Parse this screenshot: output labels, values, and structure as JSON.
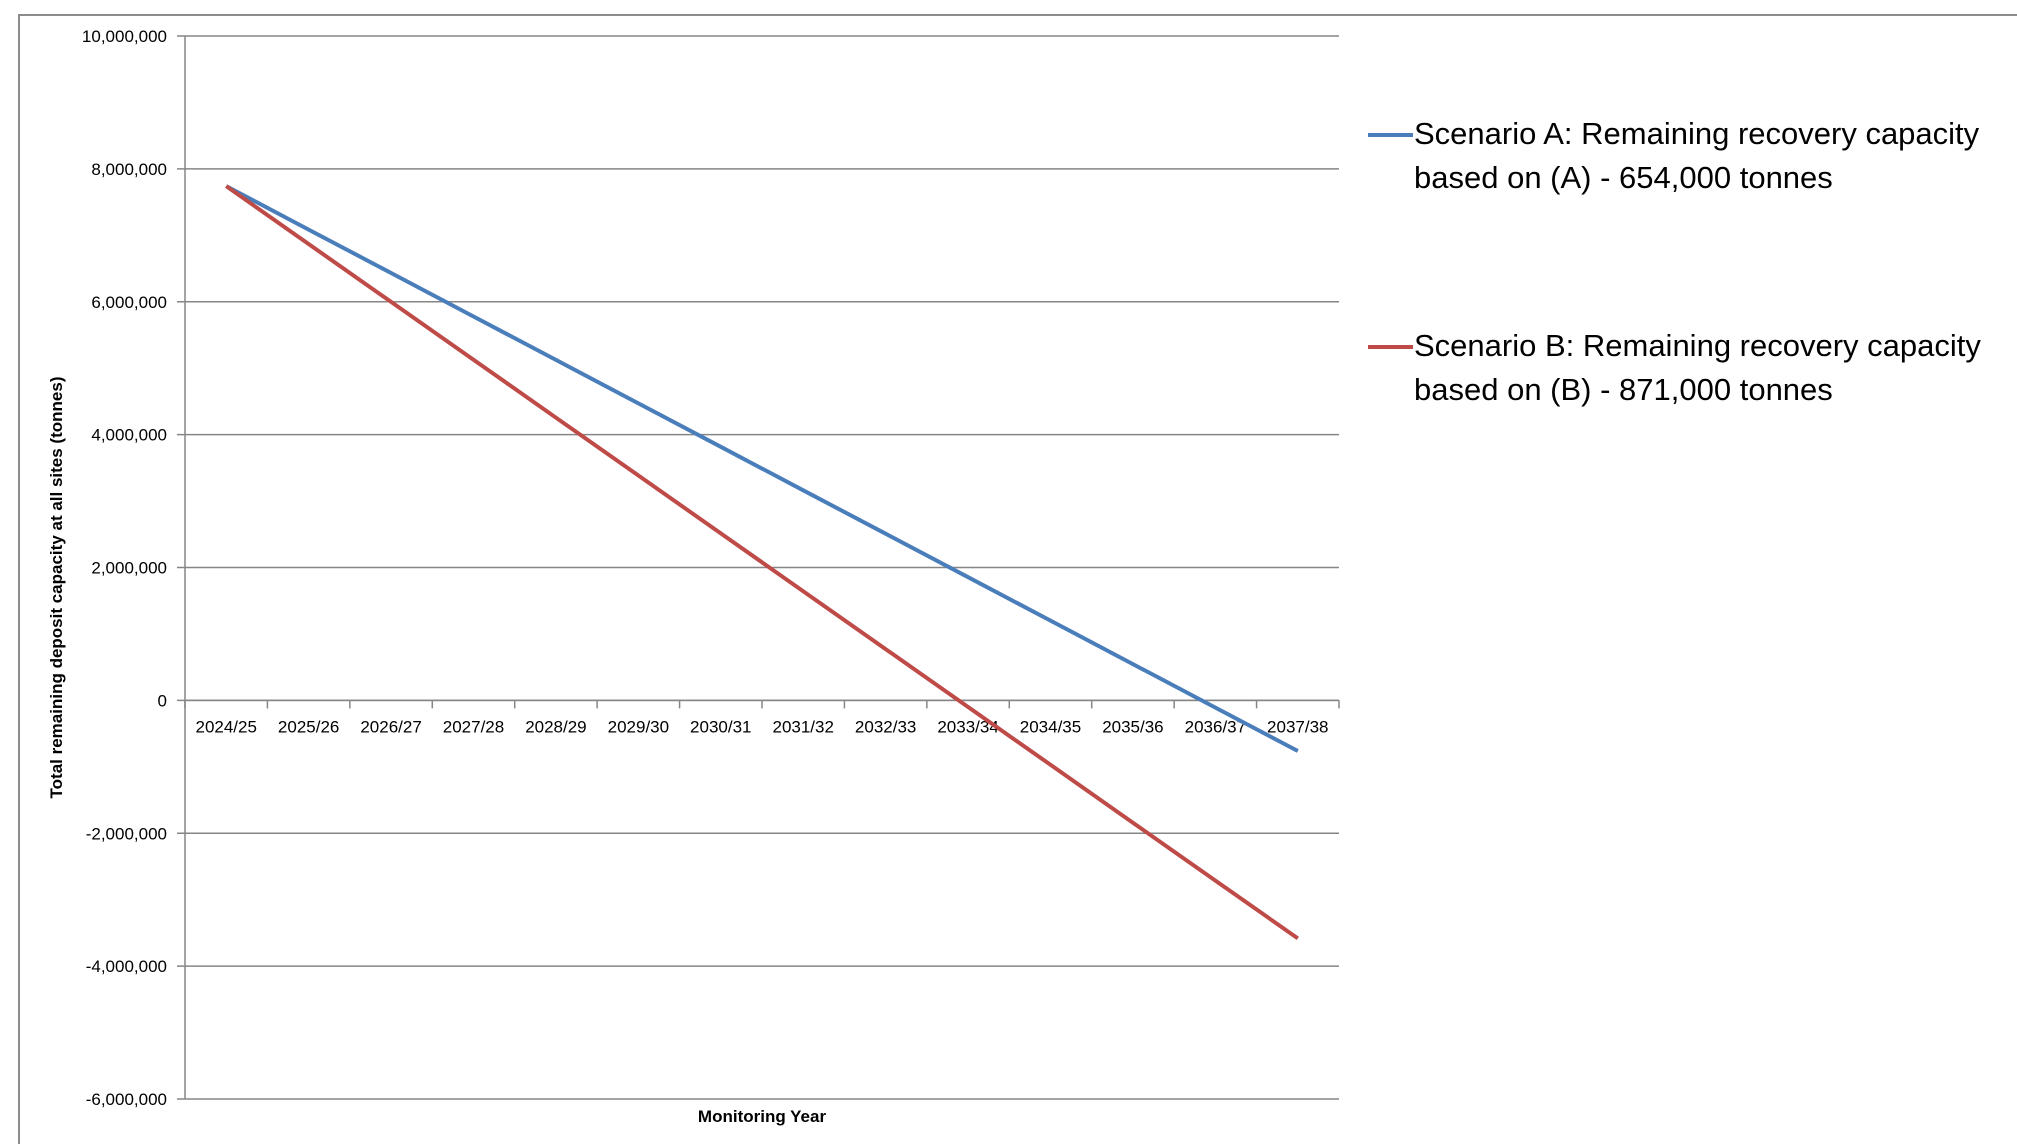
{
  "chart_data": {
    "type": "line",
    "title": "",
    "xlabel": "Monitoring Year",
    "ylabel": "Total remaining deposit capacity at all sites (tonnes)",
    "categories": [
      "2024/25",
      "2025/26",
      "2026/27",
      "2027/28",
      "2028/29",
      "2029/30",
      "2030/31",
      "2031/32",
      "2032/33",
      "2033/34",
      "2034/35",
      "2035/36",
      "2036/37",
      "2037/38"
    ],
    "ylim": [
      -6000000,
      10000000
    ],
    "yticks": [
      10000000,
      8000000,
      6000000,
      4000000,
      2000000,
      0,
      -2000000,
      -4000000,
      -6000000
    ],
    "ytick_labels": [
      "10,000,000",
      "8,000,000",
      "6,000,000",
      "4,000,000",
      "2,000,000",
      "0",
      "-2,000,000",
      "-4,000,000",
      "-6,000,000"
    ],
    "grid": true,
    "legend_position": "right",
    "series": [
      {
        "name": "Scenario A: Remaining recovery capacity based on (A) - 654,000 tonnes",
        "color": "#4a7ebb",
        "values": [
          7740000,
          7086000,
          6432000,
          5778000,
          5124000,
          4470000,
          3816000,
          3162000,
          2508000,
          1854000,
          1200000,
          546000,
          -108000,
          -762000
        ]
      },
      {
        "name": "Scenario B: Remaining recovery capacity based on (B) - 871,000 tonnes",
        "color": "#be4b48",
        "values": [
          7740000,
          6869000,
          5998000,
          5127000,
          4256000,
          3385000,
          2514000,
          1643000,
          772000,
          -99000,
          -970000,
          -1841000,
          -2712000,
          -3583000
        ]
      }
    ]
  },
  "legend": {
    "items": [
      {
        "line1": "Scenario A: Remaining recovery capacity",
        "line2": "based on (A) - 654,000 tonnes",
        "color": "#4a7ebb"
      },
      {
        "line1": "Scenario B: Remaining recovery capacity",
        "line2": "based on (B) - 871,000 tonnes",
        "color": "#be4b48"
      }
    ]
  }
}
